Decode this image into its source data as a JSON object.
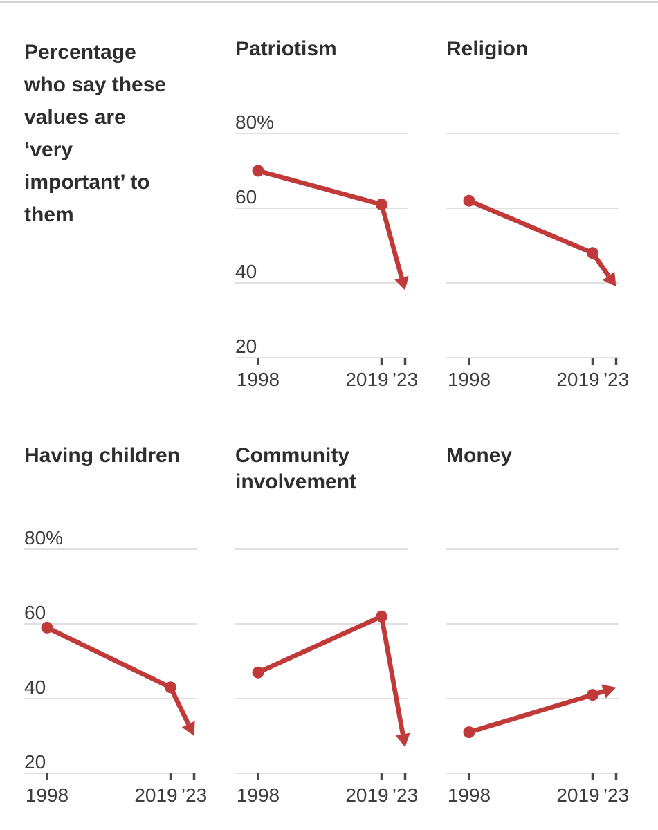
{
  "page": {
    "intro_text": "Percentage who say these values are ‘very important’ to them"
  },
  "chart_data": {
    "type": "line",
    "unit": "percent",
    "x": [
      1998,
      2019,
      2023
    ],
    "x_tick_labels": [
      "1998",
      "2019",
      "’23"
    ],
    "ylim": [
      20,
      80
    ],
    "y_ticks": [
      80,
      60,
      40,
      20
    ],
    "y_tick_labels": [
      "80%",
      "60",
      "40",
      "20"
    ],
    "legend": "none",
    "grid": "horizontal",
    "accent_color": "#c03a3a",
    "gridline_color": "#dcdcdc",
    "tick_color": "#4a4a4a",
    "charts": [
      {
        "title": "Patriotism",
        "values": [
          70,
          61,
          38
        ],
        "show_y_labels": true
      },
      {
        "title": "Religion",
        "values": [
          62,
          48,
          39
        ],
        "show_y_labels": false
      },
      {
        "title": "Having children",
        "values": [
          59,
          43,
          30
        ],
        "show_y_labels": true
      },
      {
        "title": "Community involvement",
        "values": [
          47,
          62,
          27
        ],
        "show_y_labels": false
      },
      {
        "title": "Money",
        "values": [
          31,
          41,
          43
        ],
        "show_y_labels": false
      }
    ]
  }
}
